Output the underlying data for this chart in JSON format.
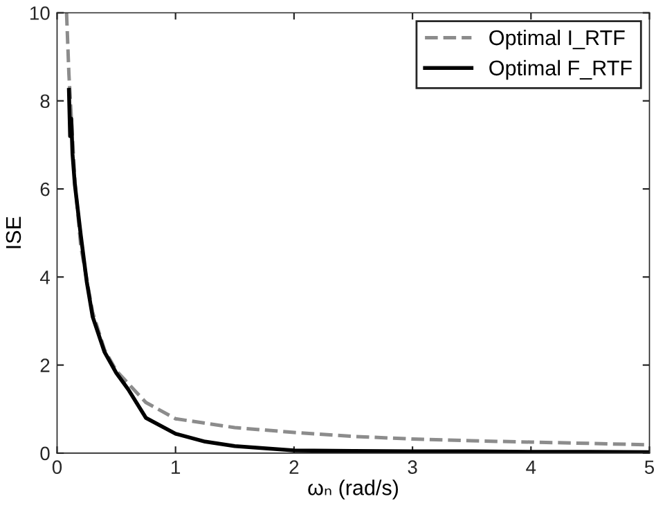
{
  "chart_data": {
    "type": "line",
    "xlabel": "ωₙ (rad/s)",
    "ylabel": "ISE",
    "xlim": [
      0,
      5
    ],
    "ylim": [
      0,
      10
    ],
    "xticks": [
      0,
      1,
      2,
      3,
      4,
      5
    ],
    "yticks": [
      0,
      2,
      4,
      6,
      8,
      10
    ],
    "legend": "top right",
    "grid": false,
    "series": [
      {
        "name": "Optimal I_RTF",
        "color": "#8c8c8c",
        "line_style": "dashed",
        "x": [
          0.08,
          0.1,
          0.15,
          0.2,
          0.3,
          0.4,
          0.5,
          0.75,
          1,
          1.5,
          2,
          2.5,
          3,
          3.5,
          4,
          4.5,
          5
        ],
        "values": [
          10,
          8.6,
          6.2,
          4.7,
          3.2,
          2.35,
          1.87,
          1.15,
          0.78,
          0.58,
          0.47,
          0.38,
          0.32,
          0.28,
          0.25,
          0.22,
          0.19
        ]
      },
      {
        "name": "Optimal F_RTF",
        "color": "#000000",
        "line_style": "solid",
        "x": [
          0.1,
          0.11,
          0.12,
          0.13,
          0.15,
          0.2,
          0.25,
          0.3,
          0.4,
          0.5,
          0.6,
          0.75,
          1,
          1.25,
          1.5,
          2,
          2.5,
          3,
          3.5,
          4,
          4.5,
          5
        ],
        "values": [
          8.25,
          7.2,
          7.6,
          6.8,
          6.1,
          4.95,
          3.9,
          3.1,
          2.3,
          1.82,
          1.45,
          0.8,
          0.44,
          0.26,
          0.16,
          0.06,
          0.05,
          0.04,
          0.04,
          0.03,
          0.03,
          0.02
        ]
      }
    ]
  }
}
